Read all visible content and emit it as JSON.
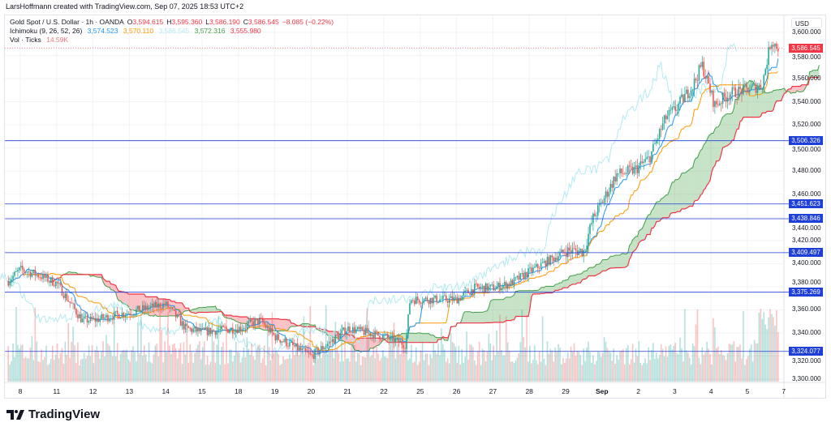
{
  "credit": "LarsHoffmann created with TradingView.com, Sep 07, 2025 18:53 UTC+2",
  "legend": {
    "symbol": "Gold Spot / U.S. Dollar · 1h · OANDA",
    "o_label": "O",
    "o": "3,594.615",
    "h_label": "H",
    "h": "3,595.360",
    "l_label": "L",
    "l": "3,586.190",
    "c_label": "C",
    "c": "3,586.545",
    "change": "−8.085 (−0.22%)",
    "ichimoku_label": "Ichimoku (9, 26, 52, 26)",
    "ichimoku_values": [
      "3,574.523",
      "3,570.110",
      "3,586.545",
      "3,572.316",
      "3,555.980"
    ],
    "vol_label": "Vol · Ticks",
    "vol_value": "14.59K"
  },
  "currency": "USD",
  "logo_text": "TradingView",
  "colors": {
    "up": "#26a69a",
    "down": "#ef5350",
    "tenkan": "#2196f3",
    "kijun": "#ff9800",
    "chikou": "#b2ebf2",
    "spanA": "#43a047",
    "spanB": "#f23645",
    "hline": "#1e3fd8",
    "last": "#f23645"
  },
  "chart_data": {
    "type": "candlestick",
    "title": "Gold Spot / U.S. Dollar · 1h · OANDA",
    "ylabel": "USD",
    "ylim": [
      3295,
      3605
    ],
    "y_ticks": [
      "3,600.000",
      "3,580.000",
      "3,560.000",
      "3,540.000",
      "3,520.000",
      "3,500.000",
      "3,480.000",
      "3,460.000",
      "3,440.000",
      "3,420.000",
      "3,400.000",
      "3,380.000",
      "3,360.000",
      "3,340.000",
      "3,320.000",
      "3,300.000"
    ],
    "y_tick_values": [
      3600,
      3580,
      3560,
      3540,
      3520,
      3500,
      3480,
      3460,
      3440,
      3420,
      3400,
      3380,
      3360,
      3340,
      3320,
      3300
    ],
    "x_ticks": [
      "8",
      "11",
      "12",
      "13",
      "14",
      "15",
      "18",
      "19",
      "20",
      "21",
      "22",
      "25",
      "26",
      "27",
      "28",
      "29",
      "Sep",
      "2",
      "3",
      "4",
      "5",
      "7"
    ],
    "approx_closes": [
      [
        -0.33,
        3385
      ],
      [
        0,
        3395
      ],
      [
        0.5,
        3390
      ],
      [
        1,
        3383
      ],
      [
        1.7,
        3351
      ],
      [
        2,
        3351
      ],
      [
        3,
        3358
      ],
      [
        4,
        3365
      ],
      [
        4.55,
        3344
      ],
      [
        5,
        3341
      ],
      [
        6,
        3344
      ],
      [
        6.6,
        3351
      ],
      [
        7,
        3337
      ],
      [
        8,
        3320
      ],
      [
        8.6,
        3334
      ],
      [
        9,
        3344
      ],
      [
        10,
        3337
      ],
      [
        10.6,
        3330
      ],
      [
        10.72,
        3369
      ],
      [
        11,
        3369
      ],
      [
        12,
        3369
      ],
      [
        12.5,
        3379
      ],
      [
        13,
        3379
      ],
      [
        13.5,
        3383
      ],
      [
        14,
        3393
      ],
      [
        15,
        3411
      ],
      [
        15.5,
        3411
      ],
      [
        15.75,
        3439
      ],
      [
        16,
        3453
      ],
      [
        16.4,
        3477
      ],
      [
        16.9,
        3481
      ],
      [
        17.3,
        3491
      ],
      [
        17.75,
        3526
      ],
      [
        18,
        3533
      ],
      [
        18.5,
        3554
      ],
      [
        18.75,
        3572
      ],
      [
        19.1,
        3537
      ],
      [
        19.5,
        3547
      ],
      [
        20,
        3551
      ],
      [
        20.4,
        3554
      ],
      [
        20.65,
        3593
      ],
      [
        20.85,
        3586.545
      ]
    ],
    "horizontal_levels": [
      {
        "value": 3506.326,
        "label": "3,506.326"
      },
      {
        "value": 3451.623,
        "label": "3,451.623"
      },
      {
        "value": 3438.846,
        "label": "3,438.846"
      },
      {
        "value": 3409.497,
        "label": "3,409.497"
      },
      {
        "value": 3375.269,
        "label": "3,375.269"
      },
      {
        "value": 3324.077,
        "label": "3,324.077"
      }
    ],
    "last_price": {
      "value": 3586.545,
      "label": "3,586.545"
    },
    "volume_last": "14.59K"
  }
}
